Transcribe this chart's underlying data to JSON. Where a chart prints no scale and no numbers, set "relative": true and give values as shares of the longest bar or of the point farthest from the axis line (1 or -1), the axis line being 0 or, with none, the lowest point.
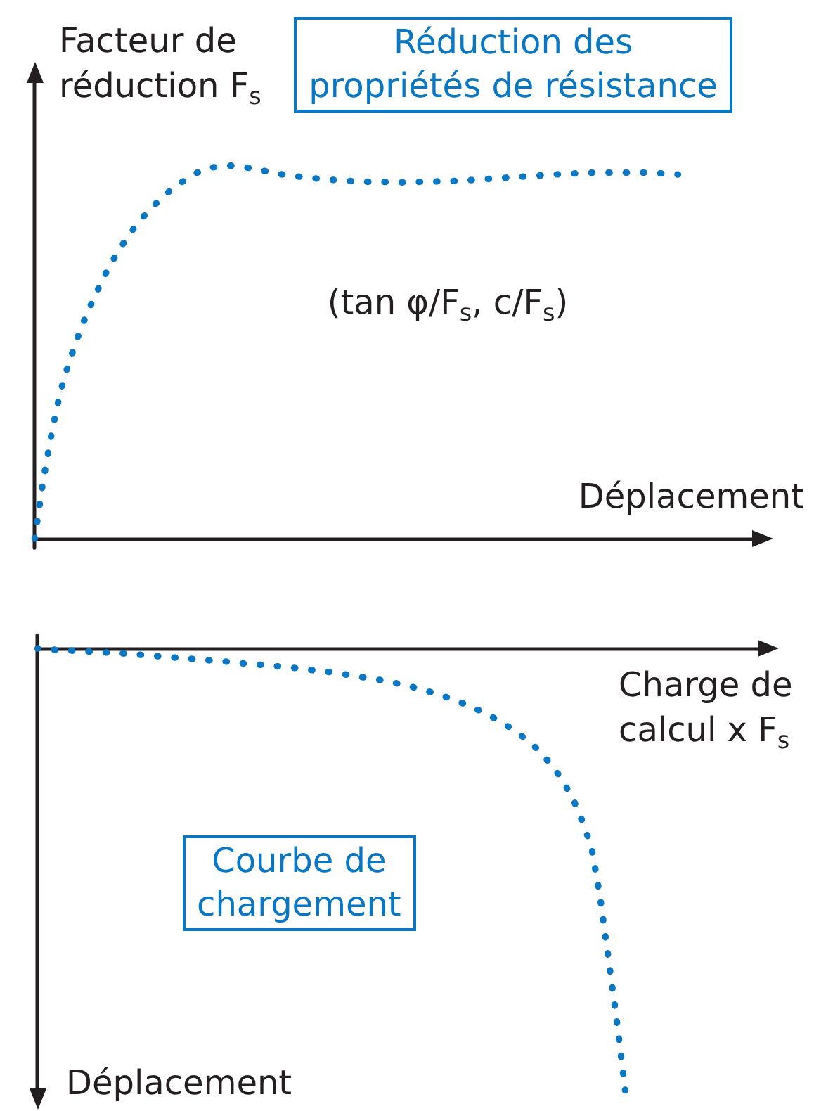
{
  "chart_data": [
    {
      "type": "line",
      "relative": true,
      "line_style": "dotted",
      "color": "#0a77c4",
      "xlabel": "Déplacement",
      "ylabel": "Facteur de réduction F$_{s}$",
      "annotations": [
        "Réduction des propriétés de résistance",
        "(tan φ/F$_{s}$, c/F$_{s}$)"
      ],
      "categories": [
        null,
        null,
        null,
        null,
        null,
        null,
        null,
        null,
        null,
        null,
        null,
        null,
        null,
        null,
        null,
        null,
        null,
        null,
        null,
        null,
        null,
        null,
        null,
        null,
        null,
        null,
        null,
        null,
        null,
        null,
        null,
        null,
        null,
        null,
        null,
        null,
        null,
        null,
        null,
        null,
        null,
        null,
        null,
        null,
        null,
        null,
        null,
        null,
        null,
        null,
        null,
        null,
        null,
        null,
        null,
        null,
        null,
        null,
        null,
        null,
        null,
        null,
        null,
        null,
        null,
        null,
        null,
        null,
        null,
        null,
        null,
        null,
        null,
        null,
        null,
        null,
        null,
        null,
        null,
        null,
        null,
        null,
        null,
        null,
        null,
        null,
        null
      ],
      "values": [
        0,
        0.156,
        0.283,
        0.391,
        0.469,
        0.535,
        0.594,
        0.645,
        0.694,
        0.737,
        0.775,
        0.81,
        0.84,
        0.867,
        0.891,
        0.913,
        0.933,
        0.95,
        0.965,
        0.979,
        0.988,
        0.995,
        0.998,
        1,
        0.998,
        0.995,
        0.991,
        0.986,
        0.982,
        0.977,
        0.974,
        0.971,
        0.968,
        0.966,
        0.963,
        0.962,
        0.96,
        0.959,
        0.958,
        0.957,
        0.956,
        0.956,
        0.956,
        0.955,
        0.955,
        0.956,
        0.957,
        0.957,
        0.958,
        0.958,
        0.959,
        0.96,
        0.962,
        0.963,
        0.965,
        0.966,
        0.968,
        0.969,
        0.971,
        0.972,
        0.974,
        0.975,
        0.977,
        0.978,
        0.979,
        0.98,
        0.981,
        0.981,
        0.981,
        0.981,
        0.981,
        0.981,
        0.981,
        0.98,
        0.979,
        0.978,
        0.976,
        null,
        null,
        null,
        null,
        null,
        null,
        null,
        null,
        null,
        null
      ]
    },
    {
      "type": "line",
      "relative": true,
      "line_style": "dotted",
      "color": "#0a77c4",
      "xlabel": "Charge de calcul x F$_{s}$",
      "ylabel": "Déplacement",
      "annotations": [
        "Courbe de chargement"
      ],
      "categories": [
        null,
        null,
        null,
        null,
        null,
        null,
        null,
        null,
        null,
        null,
        null,
        null,
        null,
        null,
        null,
        null,
        null,
        null,
        null,
        null,
        null,
        null,
        null,
        null,
        null,
        null,
        null,
        null,
        null,
        null,
        null,
        null,
        null,
        null,
        null,
        null,
        null,
        null,
        null,
        null,
        null,
        null,
        null,
        null,
        null,
        null,
        null,
        null,
        null,
        null,
        null,
        null,
        null,
        null,
        null,
        null,
        null,
        null,
        null,
        null,
        null,
        null,
        null,
        null,
        null,
        null,
        null,
        null,
        null,
        null,
        null,
        null,
        null,
        null,
        null,
        null,
        null,
        null,
        null,
        null,
        null,
        null,
        null,
        null,
        null,
        null,
        null,
        null
      ],
      "values": [
        0,
        -0.001,
        -0.003,
        -0.004,
        -0.005,
        -0.006,
        -0.007,
        -0.008,
        -0.009,
        -0.01,
        -0.011,
        -0.013,
        -0.014,
        -0.016,
        -0.017,
        -0.019,
        -0.02,
        -0.022,
        -0.023,
        -0.025,
        -0.026,
        -0.028,
        -0.029,
        -0.031,
        -0.033,
        -0.035,
        -0.036,
        -0.038,
        -0.04,
        -0.041,
        -0.043,
        -0.045,
        -0.047,
        -0.05,
        -0.052,
        -0.054,
        -0.057,
        -0.06,
        -0.063,
        -0.066,
        -0.069,
        -0.072,
        -0.076,
        -0.08,
        -0.084,
        -0.089,
        -0.094,
        -0.1,
        -0.106,
        -0.112,
        -0.119,
        -0.127,
        -0.135,
        -0.144,
        -0.154,
        -0.164,
        -0.176,
        -0.188,
        -0.203,
        -0.218,
        -0.237,
        -0.259,
        -0.284,
        -0.314,
        -0.35,
        -0.396,
        -0.451,
        -0.561,
        -0.701,
        -0.842,
        -1,
        null,
        null,
        null,
        null,
        null,
        null,
        null,
        null,
        null,
        null,
        null,
        null,
        null,
        null,
        null,
        null,
        null
      ]
    }
  ]
}
